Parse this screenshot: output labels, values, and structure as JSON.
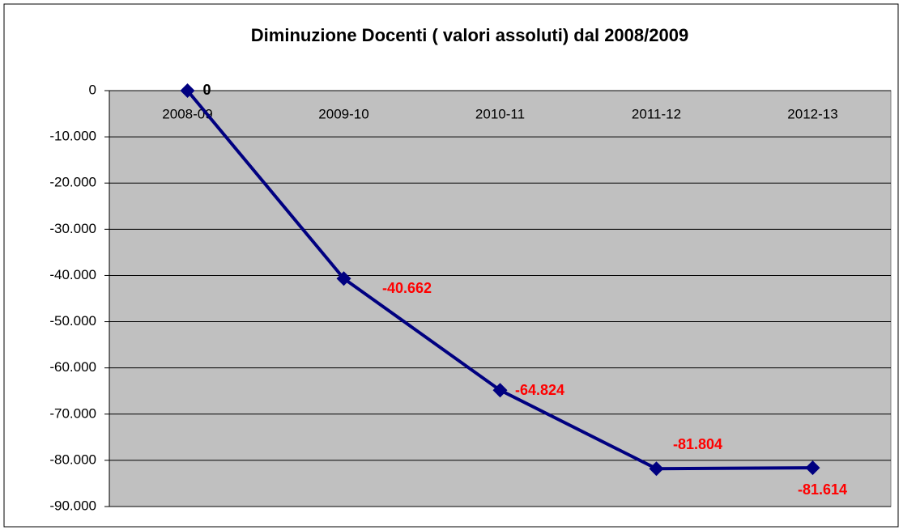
{
  "chart_data": {
    "type": "line",
    "title": "Diminuzione Docenti ( valori assoluti) dal 2008/2009",
    "categories": [
      "2008-09",
      "2009-10",
      "2010-11",
      "2011-12",
      "2012-13"
    ],
    "values": [
      0,
      -40662,
      -64824,
      -81804,
      -81614
    ],
    "value_labels": [
      "0",
      "-40.662",
      "-64.824",
      "-81.804",
      "-81.614"
    ],
    "label_colors": [
      "#000000",
      "#ff0000",
      "#ff0000",
      "#ff0000",
      "#ff0000"
    ],
    "color": "#000080",
    "ylim": [
      -90000,
      0
    ],
    "yticks": [
      0,
      {
        "value": -10000,
        "label": "-10.000"
      },
      {
        "value": -20000,
        "label": "-20.000"
      },
      {
        "value": -30000,
        "label": "-30.000"
      },
      {
        "value": -40000,
        "label": "-40.000"
      },
      {
        "value": -50000,
        "label": "-50.000"
      },
      {
        "value": -60000,
        "label": "-60.000"
      },
      {
        "value": -70000,
        "label": "-70.000"
      },
      {
        "value": -80000,
        "label": "-80.000"
      },
      {
        "value": -90000,
        "label": "-90.000"
      }
    ],
    "grid": true
  }
}
